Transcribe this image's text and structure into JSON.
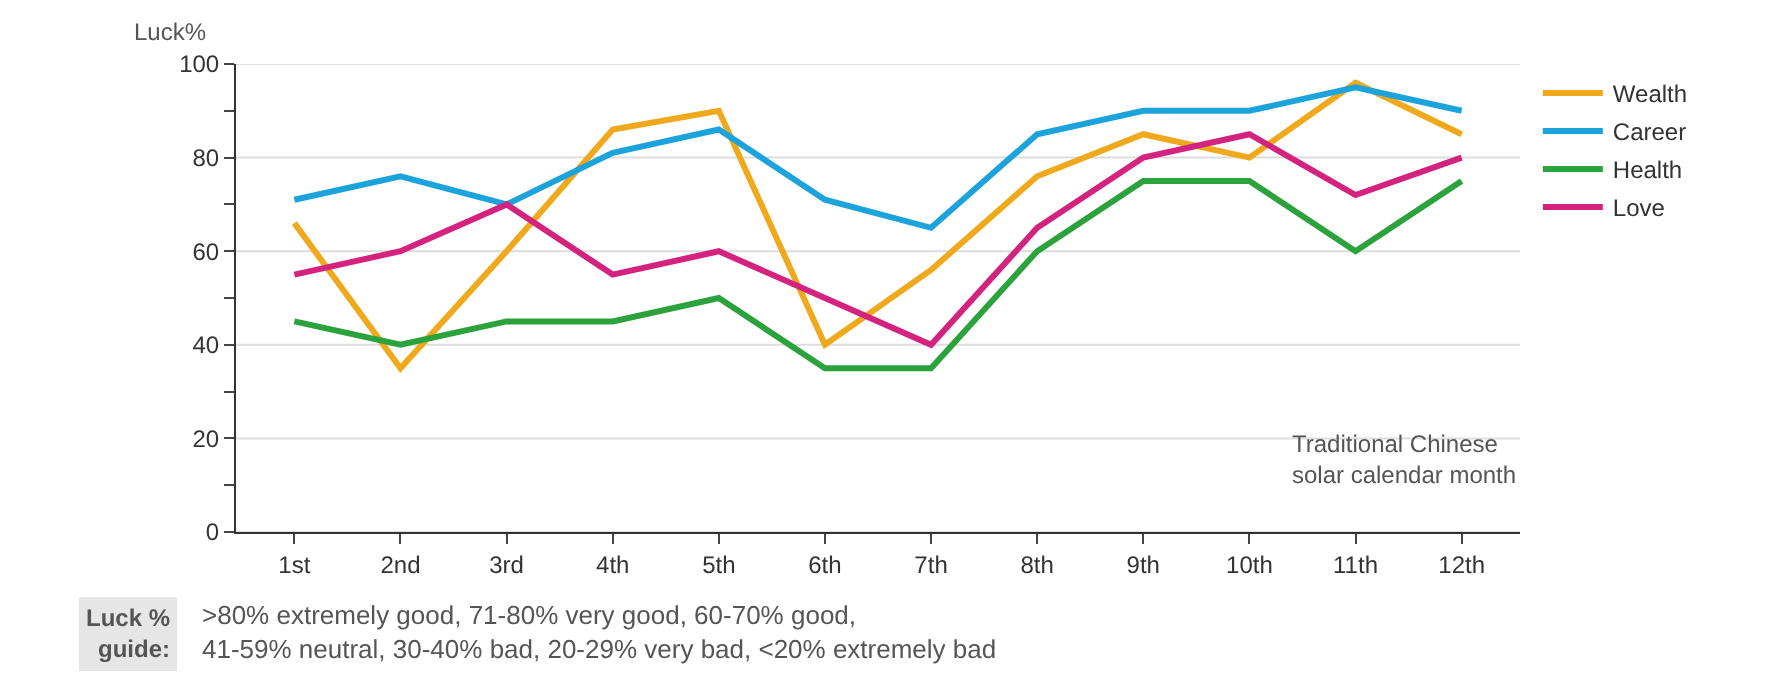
{
  "chart_data": {
    "type": "line",
    "ylabel": "Luck%",
    "xlabel": "Traditional Chinese\nsolar calendar month",
    "categories": [
      "1st",
      "2nd",
      "3rd",
      "4th",
      "5th",
      "6th",
      "7th",
      "8th",
      "9th",
      "10th",
      "11th",
      "12th"
    ],
    "series": [
      {
        "name": "Wealth",
        "color": "#f0a81c",
        "values": [
          66,
          35,
          60,
          86,
          90,
          40,
          56,
          76,
          85,
          80,
          96,
          85
        ]
      },
      {
        "name": "Career",
        "color": "#1ca3dc",
        "values": [
          71,
          76,
          70,
          81,
          86,
          71,
          65,
          85,
          90,
          90,
          95,
          90
        ]
      },
      {
        "name": "Health",
        "color": "#2ca23c",
        "values": [
          45,
          40,
          45,
          45,
          50,
          35,
          35,
          60,
          75,
          75,
          60,
          75
        ]
      },
      {
        "name": "Love",
        "color": "#d4237f",
        "values": [
          55,
          60,
          70,
          55,
          60,
          50,
          40,
          65,
          80,
          85,
          72,
          80
        ]
      }
    ],
    "ylim": [
      0,
      100
    ],
    "yticks": [
      0,
      {
        "value": 10,
        "label": null
      },
      20,
      {
        "value": 30,
        "label": null
      },
      40,
      {
        "value": 50,
        "label": null
      },
      60,
      {
        "value": 70,
        "label": null
      },
      80,
      {
        "value": 90,
        "label": null
      },
      100
    ],
    "grid": "y",
    "legend": "top right",
    "marker": "none",
    "line_style": "solid",
    "annotations": [
      "Luck %\nguide:",
      ">80% extremely good, 71-80% very good, 60-70% good,\n41-59% neutral, 30-40% bad, 20-29% very bad, <20% extremely bad"
    ]
  }
}
